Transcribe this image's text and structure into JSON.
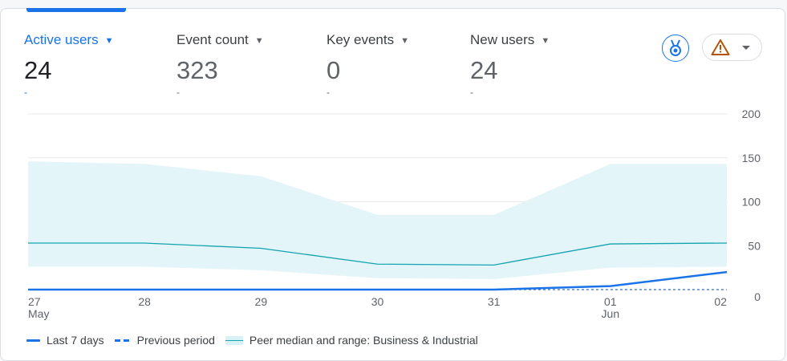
{
  "metrics": [
    {
      "label": "Active users",
      "value": "24",
      "delta": "-",
      "active": true
    },
    {
      "label": "Event count",
      "value": "323",
      "delta": "-",
      "active": false
    },
    {
      "label": "Key events",
      "value": "0",
      "delta": "-",
      "active": false
    },
    {
      "label": "New users",
      "value": "24",
      "delta": "-",
      "active": false
    }
  ],
  "toolbar": {
    "insights_icon": "insights-badge-icon",
    "alert_icon": "warning-triangle-icon",
    "dropdown_icon": "chevron-down-icon"
  },
  "colors": {
    "accent": "#1a73e8",
    "peer_line": "#12a4af",
    "peer_band": "#e3f5f8",
    "warning": "#b45309"
  },
  "legend": {
    "last7": "Last 7 days",
    "previous": "Previous period",
    "peer": "Peer median and range: Business & Industrial"
  },
  "chart_data": {
    "type": "line",
    "categories": [
      "27",
      "28",
      "29",
      "30",
      "31",
      "01",
      "02"
    ],
    "category_sublabels": [
      "May",
      "",
      "",
      "",
      "",
      "Jun",
      ""
    ],
    "ylim": [
      0,
      200
    ],
    "yticks": [
      0,
      50,
      100,
      150,
      200
    ],
    "grid": true,
    "legend_position": "bottom-left",
    "series": [
      {
        "name": "Last 7 days",
        "style": "solid",
        "values": [
          0,
          0,
          0,
          0,
          0,
          4,
          20
        ]
      },
      {
        "name": "Previous period",
        "style": "dashed",
        "values": [
          0,
          0,
          0,
          0,
          0,
          0,
          0
        ]
      },
      {
        "name": "Peer median and range: Business & Industrial",
        "style": "band",
        "median": [
          53,
          53,
          47,
          29,
          28,
          52,
          53
        ],
        "low": [
          26,
          26,
          22,
          13,
          12,
          25,
          26
        ],
        "high": [
          146,
          143,
          129,
          85,
          85,
          143,
          143
        ]
      }
    ]
  }
}
